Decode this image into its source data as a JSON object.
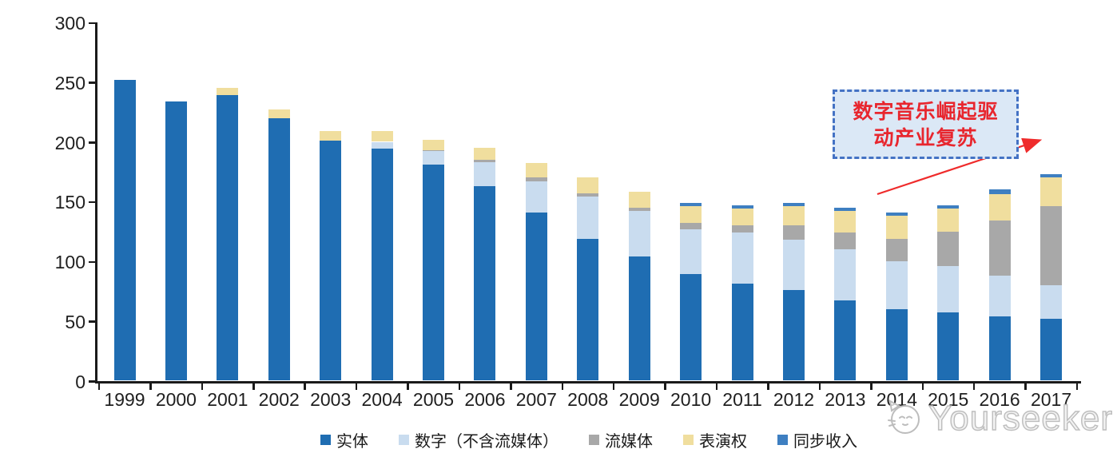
{
  "page": {
    "background": "#ffffff"
  },
  "chart_data": {
    "type": "bar",
    "stacked": true,
    "title": "",
    "xlabel": "",
    "ylabel": "",
    "categories": [
      "1999",
      "2000",
      "2001",
      "2002",
      "2003",
      "2004",
      "2005",
      "2006",
      "2007",
      "2008",
      "2009",
      "2010",
      "2011",
      "2012",
      "2013",
      "2014",
      "2015",
      "2016",
      "2017"
    ],
    "series": [
      {
        "name": "实体",
        "color": "#1f6db2",
        "values": [
          252,
          234,
          239,
          220,
          201,
          194,
          181,
          163,
          141,
          119,
          104,
          89,
          81,
          76,
          67,
          60,
          57,
          54,
          52
        ]
      },
      {
        "name": "数字（不含流媒体）",
        "color": "#c9dcef",
        "values": [
          0,
          0,
          0,
          0,
          0,
          6,
          11,
          20,
          26,
          35,
          38,
          38,
          43,
          42,
          43,
          40,
          39,
          34,
          28
        ]
      },
      {
        "name": "流媒体",
        "color": "#a8a8a8",
        "values": [
          0,
          0,
          0,
          0,
          0,
          0,
          1,
          2,
          3,
          3,
          3,
          5,
          6,
          12,
          14,
          19,
          29,
          46,
          66
        ]
      },
      {
        "name": "表演权",
        "color": "#f0de9e",
        "values": [
          0,
          0,
          6,
          7,
          8,
          9,
          9,
          10,
          12,
          13,
          13,
          14,
          14,
          16,
          18,
          19,
          19,
          22,
          24
        ]
      },
      {
        "name": "同步收入",
        "color": "#3e7fc1",
        "values": [
          0,
          0,
          0,
          0,
          0,
          0,
          0,
          0,
          0,
          0,
          0,
          3,
          3,
          3,
          3,
          3,
          3,
          4,
          3
        ]
      }
    ],
    "ylim": [
      0,
      300
    ],
    "yticks": [
      0,
      50,
      100,
      150,
      200,
      250,
      300
    ],
    "grid": false,
    "legend_position": "bottom",
    "axis_color": "#1a1a1a",
    "tick_label_color": "#1f1f1f"
  },
  "annotation": {
    "line1": "数字音乐崛起驱",
    "line2": "动产业复苏",
    "box_border_color": "#4472c4",
    "box_fill_color": "#dbe8f6",
    "text_color": "#e8262e",
    "arrow_color": "#ef2b2b"
  },
  "watermark": {
    "text": "Yourseeker",
    "logo": "cat-logo",
    "color": "#bdbdbd"
  }
}
